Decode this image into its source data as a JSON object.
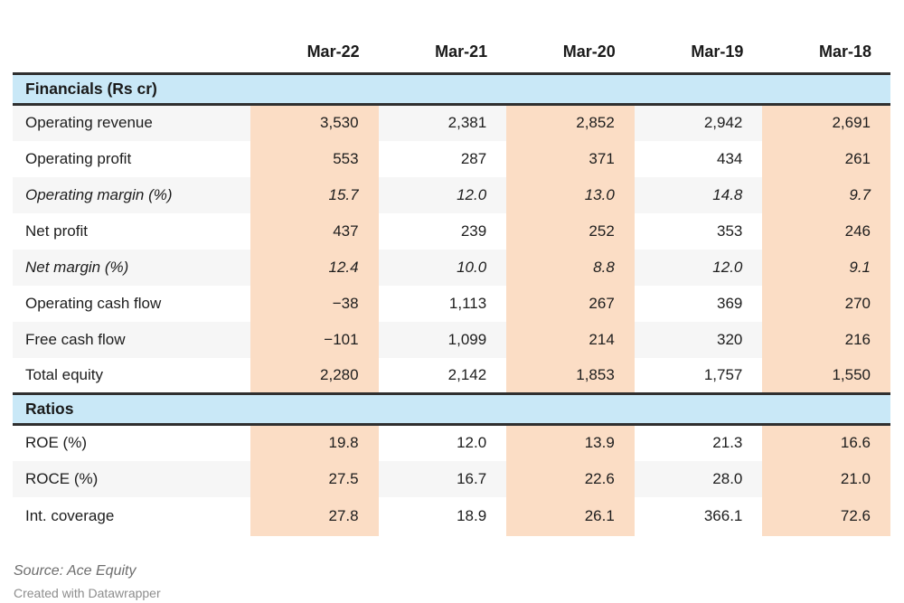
{
  "chart_data": {
    "type": "table",
    "title": "",
    "columns": [
      "Mar-22",
      "Mar-21",
      "Mar-20",
      "Mar-19",
      "Mar-18"
    ],
    "highlighted_columns": [
      "Mar-22",
      "Mar-20",
      "Mar-18"
    ],
    "sections": [
      {
        "title": "Financials (Rs cr)",
        "rows": [
          {
            "label": "Operating revenue",
            "italic": false,
            "values": [
              "3,530",
              "2,381",
              "2,852",
              "2,942",
              "2,691"
            ]
          },
          {
            "label": "Operating profit",
            "italic": false,
            "values": [
              "553",
              "287",
              "371",
              "434",
              "261"
            ]
          },
          {
            "label": "Operating margin (%)",
            "italic": true,
            "values": [
              "15.7",
              "12.0",
              "13.0",
              "14.8",
              "9.7"
            ]
          },
          {
            "label": "Net profit",
            "italic": false,
            "values": [
              "437",
              "239",
              "252",
              "353",
              "246"
            ]
          },
          {
            "label": "Net margin (%)",
            "italic": true,
            "values": [
              "12.4",
              "10.0",
              "8.8",
              "12.0",
              "9.1"
            ]
          },
          {
            "label": "Operating cash flow",
            "italic": false,
            "values": [
              "−38",
              "1,113",
              "267",
              "369",
              "270"
            ]
          },
          {
            "label": "Free cash flow",
            "italic": false,
            "values": [
              "−101",
              "1,099",
              "214",
              "320",
              "216"
            ]
          },
          {
            "label": "Total equity",
            "italic": false,
            "values": [
              "2,280",
              "2,142",
              "1,853",
              "1,757",
              "1,550"
            ]
          }
        ]
      },
      {
        "title": "Ratios",
        "rows": [
          {
            "label": "ROE (%)",
            "italic": false,
            "values": [
              "19.8",
              "12.0",
              "13.9",
              "21.3",
              "16.6"
            ]
          },
          {
            "label": "ROCE (%)",
            "italic": false,
            "values": [
              "27.5",
              "16.7",
              "22.6",
              "28.0",
              "21.0"
            ]
          },
          {
            "label": "Int. coverage",
            "italic": false,
            "values": [
              "27.8",
              "18.9",
              "26.1",
              "366.1",
              "72.6"
            ]
          }
        ]
      }
    ]
  },
  "footer": {
    "source": "Source: Ace Equity",
    "credit": "Created with Datawrapper"
  },
  "colors": {
    "section_header_bg": "#c9e8f7",
    "highlight_column_bg": "#fbddc5",
    "row_stripe_bg": "#f6f6f6",
    "rule": "#2f2f2f",
    "text": "#1d1d1d",
    "footer_text": "#6e6e6e"
  }
}
